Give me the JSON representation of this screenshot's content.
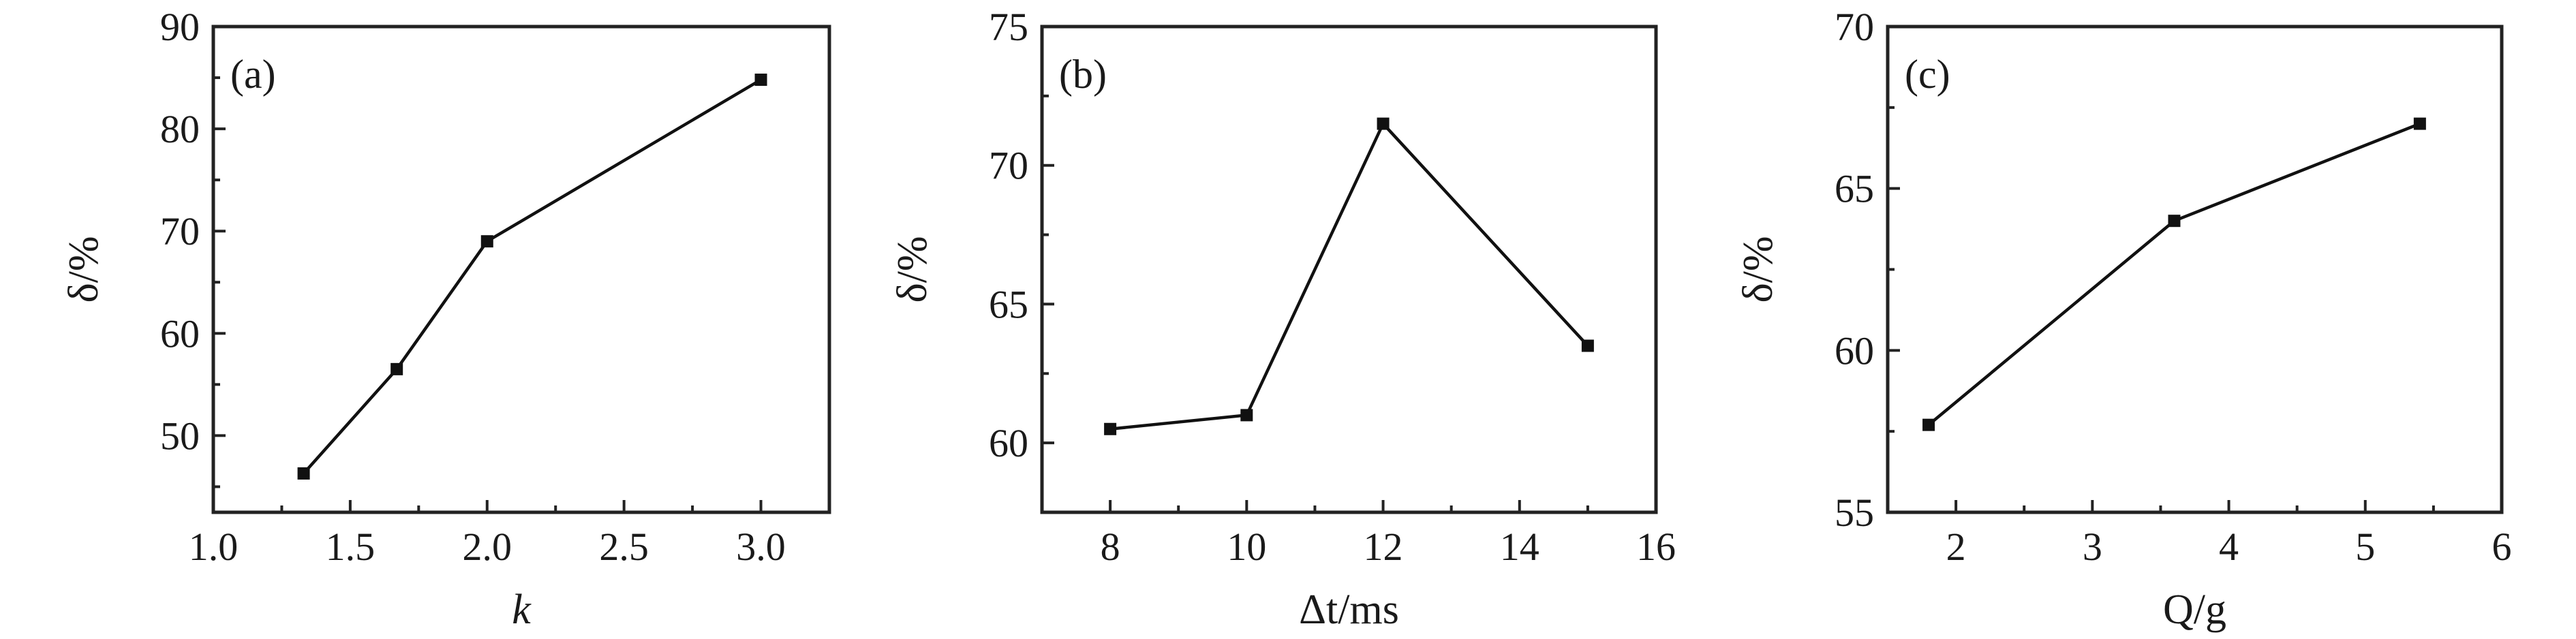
{
  "colors": {
    "line": "#111111",
    "marker": "#111111",
    "frame": "#222222"
  },
  "chart_data": [
    {
      "type": "line",
      "panel_label": "(a)",
      "xlabel": "k",
      "ylabel": "δ/%",
      "xlim": [
        1.0,
        3.25
      ],
      "ylim": [
        42.5,
        90
      ],
      "xticks": [
        "1.0",
        "1.5",
        "2.0",
        "2.5",
        "3.0"
      ],
      "yticks": [
        "50",
        "60",
        "70",
        "80",
        "90"
      ],
      "x": [
        1.33,
        1.67,
        2.0,
        3.0
      ],
      "y": [
        46.3,
        56.5,
        69.0,
        84.8
      ],
      "marker": "square",
      "grid": false
    },
    {
      "type": "line",
      "panel_label": "(b)",
      "xlabel": "Δt/ms",
      "ylabel": "δ/%",
      "xlim": [
        7,
        16
      ],
      "ylim": [
        57.5,
        75
      ],
      "xticks": [
        "8",
        "10",
        "12",
        "14",
        "16"
      ],
      "yticks": [
        "60",
        "65",
        "70",
        "75"
      ],
      "x": [
        8,
        10,
        12,
        15
      ],
      "y": [
        60.5,
        61.0,
        71.5,
        63.5
      ],
      "marker": "square",
      "grid": false
    },
    {
      "type": "line",
      "panel_label": "(c)",
      "xlabel": "Q/g",
      "ylabel": "δ/%",
      "xlim": [
        1.5,
        6
      ],
      "ylim": [
        55,
        70
      ],
      "xticks": [
        "2",
        "3",
        "4",
        "5",
        "6"
      ],
      "yticks": [
        "55",
        "60",
        "65",
        "70"
      ],
      "x": [
        1.8,
        3.6,
        5.4
      ],
      "y": [
        57.7,
        64.0,
        67.0
      ],
      "marker": "square",
      "grid": false
    }
  ]
}
